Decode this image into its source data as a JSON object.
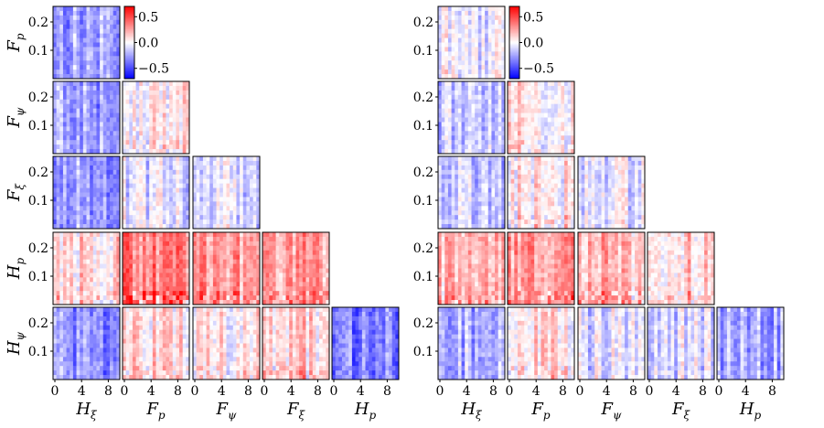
{
  "chart_data": [
    {
      "type": "heatmap",
      "layout": "lower-triangular correlation matrix",
      "rows": [
        "F_p",
        "F_ψ",
        "F_ξ",
        "H_p",
        "H_ψ"
      ],
      "columns": [
        "H_ξ",
        "F_p",
        "F_ψ",
        "F_ξ",
        "H_p"
      ],
      "xticks": [
        "0",
        "4",
        "8"
      ],
      "yticks": [
        "0.1",
        "0.2"
      ],
      "colorbar": {
        "ticks": [
          "0.5",
          "0.0",
          "−0.5"
        ],
        "range": [
          -0.7,
          0.7
        ],
        "colormap": "bwr"
      },
      "cell_mean_values": [
        [
          -0.25
        ],
        [
          -0.25,
          0.05
        ],
        [
          -0.25,
          -0.1,
          -0.1
        ],
        [
          0.1,
          0.35,
          0.25,
          0.25
        ],
        [
          -0.3,
          0.1,
          0.05,
          0.1,
          -0.35
        ]
      ]
    },
    {
      "type": "heatmap",
      "layout": "lower-triangular correlation matrix",
      "rows": [
        "F_p",
        "F_ψ",
        "F_ξ",
        "H_p",
        "H_ψ"
      ],
      "columns": [
        "H_ξ",
        "F_p",
        "F_ψ",
        "F_ξ",
        "H_p"
      ],
      "xticks": [
        "0",
        "4",
        "8"
      ],
      "yticks": [
        "0.1",
        "0.2"
      ],
      "colorbar": {
        "ticks": [
          "0.5",
          "0.0",
          "−0.5"
        ],
        "range": [
          -0.7,
          0.7
        ],
        "colormap": "bwr"
      },
      "cell_mean_values": [
        [
          -0.05
        ],
        [
          -0.15,
          0.05
        ],
        [
          -0.15,
          0.05,
          -0.1
        ],
        [
          0.15,
          0.25,
          0.2,
          0.15
        ],
        [
          -0.2,
          0.05,
          -0.1,
          -0.1,
          -0.25
        ]
      ]
    }
  ]
}
